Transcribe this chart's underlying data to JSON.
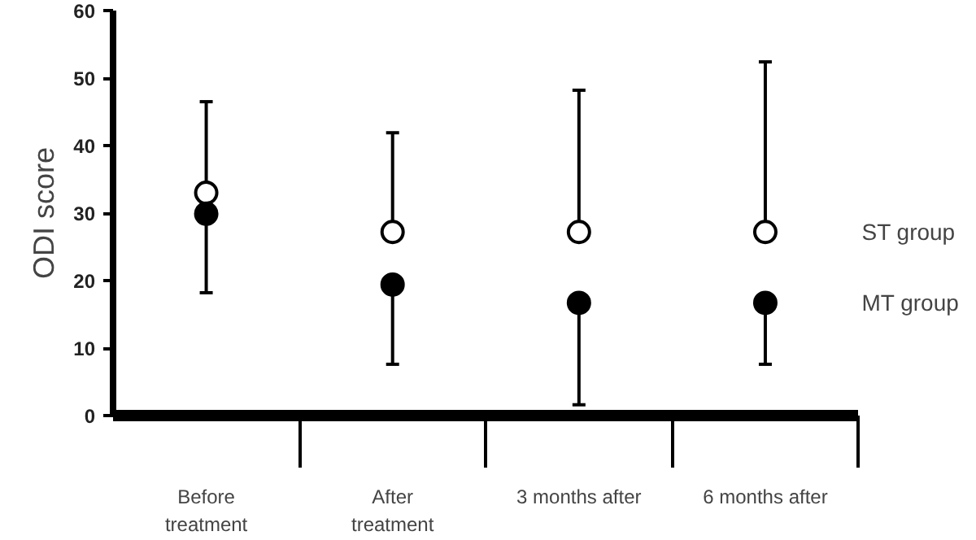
{
  "chart_data": {
    "type": "scatter",
    "ylabel": "ODI score",
    "categories": [
      "Before\ntreatment",
      "After\ntreatment",
      "3 months after",
      "6 months after"
    ],
    "ylim": [
      0,
      60
    ],
    "yticks": [
      0,
      10,
      20,
      30,
      40,
      50,
      60
    ],
    "grid": false,
    "marker": "circle",
    "series": [
      {
        "name": "ST group",
        "color": "#ffffff",
        "values": [
          33.0,
          27.2,
          27.2,
          27.2
        ],
        "errors": [
          [
            33.0,
            46.5
          ],
          [
            27.2,
            41.9
          ],
          [
            27.2,
            48.2
          ],
          [
            27.2,
            52.4
          ]
        ]
      },
      {
        "name": "MT group",
        "color": "#000000",
        "values": [
          29.9,
          19.4,
          16.7,
          16.7
        ],
        "errors": [
          [
            18.2,
            29.9
          ],
          [
            7.6,
            19.4
          ],
          [
            1.6,
            16.7
          ],
          [
            7.6,
            16.7
          ]
        ]
      }
    ]
  }
}
